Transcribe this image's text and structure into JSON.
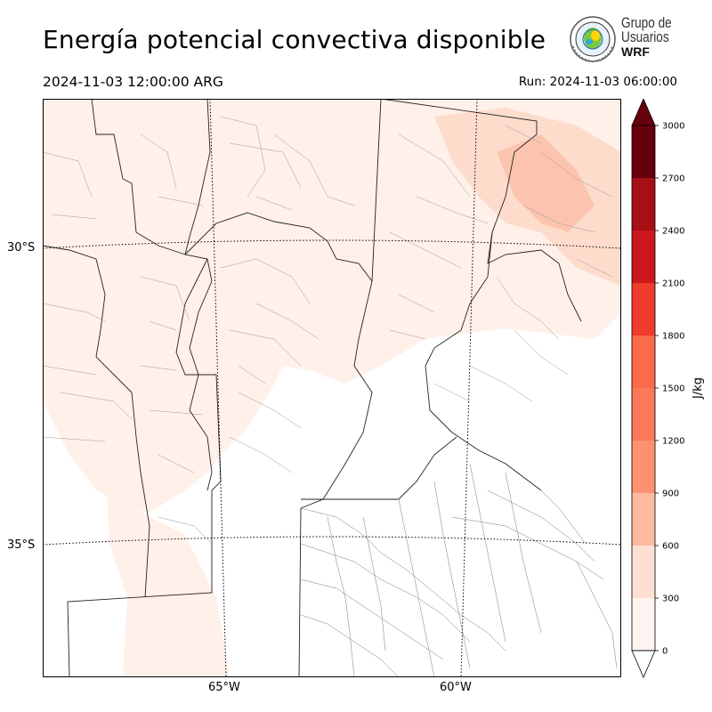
{
  "title": "Energía potencial convectiva disponible",
  "valid_time": "2024-11-03 12:00:00 ARG",
  "run_time": "Run: 2024-11-03 06:00:00",
  "logo": {
    "line1": "Grupo de",
    "line2": "Usuarios",
    "line3": "WRF"
  },
  "map": {
    "lat_labels": [
      "30°S",
      "35°S"
    ],
    "lon_labels": [
      "65°W",
      "60°W"
    ]
  },
  "colorbar": {
    "unit": "J/kg",
    "levels": [
      0,
      300,
      600,
      900,
      1200,
      1500,
      1800,
      2100,
      2400,
      2700,
      3000
    ],
    "colors": [
      "#fff5f0",
      "#fee0d2",
      "#fcbba1",
      "#fc9272",
      "#fb7858",
      "#fb6a4a",
      "#ef3b2c",
      "#cb181d",
      "#a50f15",
      "#67000d"
    ],
    "under_color": "#ffffff",
    "over_color": "#67000d",
    "extend": "both"
  }
}
